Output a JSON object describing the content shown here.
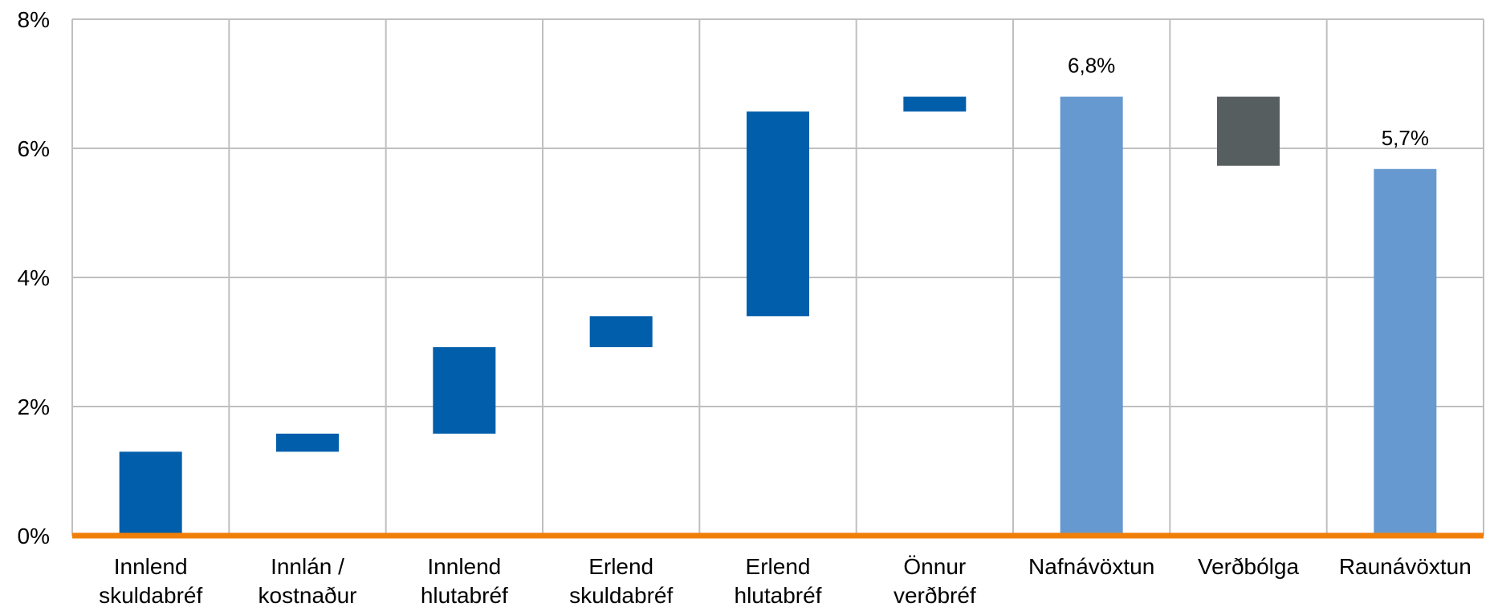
{
  "chart_data": {
    "type": "bar",
    "subtype": "waterfall",
    "title": "",
    "xlabel": "",
    "ylabel": "",
    "ylim": [
      0,
      8
    ],
    "yticks": [
      "0%",
      "2%",
      "4%",
      "6%",
      "8%"
    ],
    "grid": true,
    "categories": [
      [
        "Innlend",
        "skuldabréf"
      ],
      [
        "Innlán /",
        "kostnaður"
      ],
      [
        "Innlend",
        "hlutabréf"
      ],
      [
        "Erlend",
        "skuldabréf"
      ],
      [
        "Erlend",
        "hlutabréf"
      ],
      [
        "Önnur",
        "verðbréf"
      ],
      [
        "Nafnávöxtun"
      ],
      [
        "Verðbólga"
      ],
      [
        "Raunávöxtun"
      ]
    ],
    "bars": [
      {
        "base": 0.0,
        "top": 1.3,
        "color": "#005EAB"
      },
      {
        "base": 1.3,
        "top": 1.58,
        "color": "#005EAB"
      },
      {
        "base": 1.58,
        "top": 2.92,
        "color": "#005EAB"
      },
      {
        "base": 2.92,
        "top": 3.4,
        "color": "#005EAB"
      },
      {
        "base": 3.4,
        "top": 6.57,
        "color": "#005EAB"
      },
      {
        "base": 6.57,
        "top": 6.8,
        "color": "#005EAB"
      },
      {
        "base": 0.0,
        "top": 6.8,
        "color": "#6699D0",
        "label": "6,8%"
      },
      {
        "base": 5.73,
        "top": 6.8,
        "color": "#575E60"
      },
      {
        "base": 0.0,
        "top": 5.68,
        "color": "#6699D0",
        "label": "5,7%"
      }
    ],
    "colors": {
      "contribution": "#005EAB",
      "total": "#6699D0",
      "inflation": "#575E60",
      "baseline": "#F07F09",
      "grid": "#BFBFBF"
    }
  }
}
